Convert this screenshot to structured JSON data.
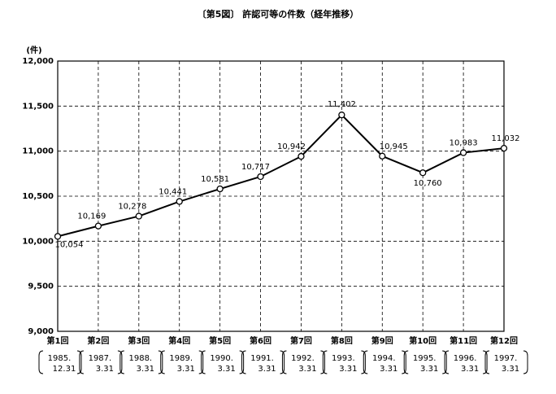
{
  "chart_data": {
    "type": "line",
    "title": "〔第5図〕 許認可等の件数（経年推移）",
    "y_unit": "(件)",
    "categories": [
      "第1回",
      "第2回",
      "第3回",
      "第4回",
      "第5回",
      "第6回",
      "第7回",
      "第8回",
      "第9回",
      "第10回",
      "第11回",
      "第12回"
    ],
    "category_dates": [
      [
        "1985.",
        "12.31"
      ],
      [
        "1987.",
        "3.31"
      ],
      [
        "1988.",
        "3.31"
      ],
      [
        "1989.",
        "3.31"
      ],
      [
        "1990.",
        "3.31"
      ],
      [
        "1991.",
        "3.31"
      ],
      [
        "1992.",
        "3.31"
      ],
      [
        "1993.",
        "3.31"
      ],
      [
        "1994.",
        "3.31"
      ],
      [
        "1995.",
        "3.31"
      ],
      [
        "1996.",
        "3.31"
      ],
      [
        "1997.",
        "3.31"
      ]
    ],
    "series": [
      {
        "color": "#000000",
        "values": [
          10054,
          10169,
          10278,
          10441,
          10581,
          10717,
          10942,
          11402,
          10945,
          10760,
          10983,
          11032
        ],
        "value_labels": [
          "10,054",
          "10,169",
          "10,278",
          "10,441",
          "10,581",
          "10,717",
          "10,942",
          "11,402",
          "10,945",
          "10,760",
          "10,983",
          "11,032"
        ]
      }
    ],
    "ylim": [
      9000,
      12000
    ],
    "yticks": [
      {
        "value": 9000,
        "label": "9,000"
      },
      {
        "value": 9500,
        "label": "9,500"
      },
      {
        "value": 10000,
        "label": "10,000"
      },
      {
        "value": 10500,
        "label": "10,500"
      },
      {
        "value": 11000,
        "label": "11,000"
      },
      {
        "value": 11500,
        "label": "11,500"
      },
      {
        "value": 12000,
        "label": "12,000"
      }
    ],
    "grid": true
  }
}
